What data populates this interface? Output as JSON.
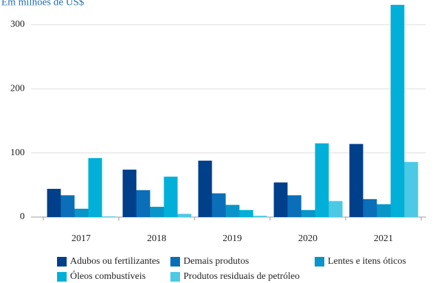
{
  "chart_data": {
    "type": "bar",
    "title": "Em milhões de US$",
    "categories": [
      "2017",
      "2018",
      "2019",
      "2020",
      "2021"
    ],
    "series": [
      {
        "name": "Adubos ou fertilizantes",
        "color": "#003f8a",
        "values": [
          44,
          74,
          88,
          54,
          114
        ]
      },
      {
        "name": "Demais produtos",
        "color": "#0a6fb8",
        "values": [
          34,
          42,
          37,
          34,
          28
        ]
      },
      {
        "name": "Lentes e itens óticos",
        "color": "#0a95c8",
        "values": [
          13,
          16,
          19,
          11,
          20
        ]
      },
      {
        "name": "Óleos combustíveis",
        "color": "#00b0d8",
        "values": [
          92,
          63,
          11,
          115,
          331
        ]
      },
      {
        "name": "Produtos residuais de petróleo",
        "color": "#4cc9e4",
        "values": [
          1,
          5,
          2,
          25,
          86
        ]
      }
    ],
    "ylim": [
      0,
      340
    ],
    "yticks": [
      0,
      100,
      200,
      300
    ],
    "grid": true
  }
}
